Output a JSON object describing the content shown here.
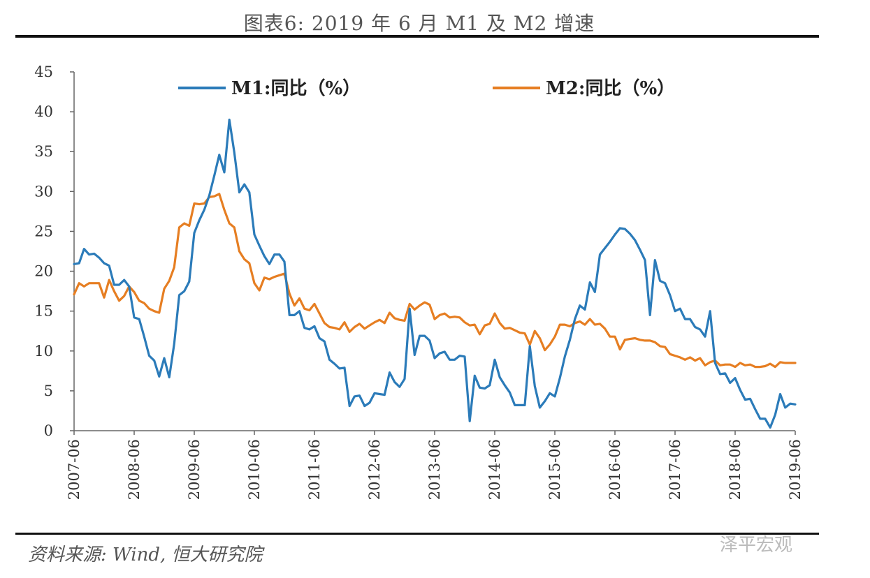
{
  "title": "图表6: 2019 年 6 月 M1 及 M2 增速",
  "source": "资料来源: Wind, 恒大研究院",
  "watermark": "泽平宏观",
  "chart_data": {
    "type": "line",
    "ylim": [
      0,
      45
    ],
    "yticks": [
      0,
      5,
      10,
      15,
      20,
      25,
      30,
      35,
      40,
      45
    ],
    "xticks": [
      "2007-06",
      "2008-06",
      "2009-06",
      "2010-06",
      "2011-06",
      "2012-06",
      "2013-06",
      "2014-06",
      "2015-06",
      "2016-06",
      "2017-06",
      "2018-06",
      "2019-06"
    ],
    "grid": false,
    "legend_position": "top",
    "series": [
      {
        "name": "M1:同比（%）",
        "color": "#2b7bb9",
        "points": [
          [
            "2007-06",
            20.9
          ],
          [
            "2007-07",
            21.0
          ],
          [
            "2007-08",
            22.8
          ],
          [
            "2007-09",
            22.1
          ],
          [
            "2007-10",
            22.2
          ],
          [
            "2007-11",
            21.7
          ],
          [
            "2007-12",
            21.0
          ],
          [
            "2008-01",
            20.7
          ],
          [
            "2008-02",
            18.3
          ],
          [
            "2008-03",
            18.3
          ],
          [
            "2008-04",
            18.9
          ],
          [
            "2008-05",
            18.1
          ],
          [
            "2008-06",
            14.2
          ],
          [
            "2008-07",
            14.0
          ],
          [
            "2008-08",
            11.8
          ],
          [
            "2008-09",
            9.4
          ],
          [
            "2008-10",
            8.8
          ],
          [
            "2008-11",
            6.8
          ],
          [
            "2008-12",
            9.1
          ],
          [
            "2009-01",
            6.7
          ],
          [
            "2009-02",
            10.9
          ],
          [
            "2009-03",
            17.0
          ],
          [
            "2009-04",
            17.5
          ],
          [
            "2009-05",
            18.7
          ],
          [
            "2009-06",
            24.8
          ],
          [
            "2009-07",
            26.4
          ],
          [
            "2009-08",
            27.7
          ],
          [
            "2009-09",
            29.5
          ],
          [
            "2009-10",
            32.0
          ],
          [
            "2009-11",
            34.6
          ],
          [
            "2009-12",
            32.4
          ],
          [
            "2010-01",
            39.0
          ],
          [
            "2010-02",
            34.9
          ],
          [
            "2010-03",
            29.9
          ],
          [
            "2010-04",
            30.9
          ],
          [
            "2010-05",
            29.9
          ],
          [
            "2010-06",
            24.6
          ],
          [
            "2010-07",
            23.2
          ],
          [
            "2010-08",
            21.9
          ],
          [
            "2010-09",
            20.9
          ],
          [
            "2010-10",
            22.1
          ],
          [
            "2010-11",
            22.1
          ],
          [
            "2010-12",
            21.2
          ],
          [
            "2011-01",
            14.5
          ],
          [
            "2011-02",
            14.5
          ],
          [
            "2011-03",
            15.0
          ],
          [
            "2011-04",
            12.9
          ],
          [
            "2011-05",
            12.7
          ],
          [
            "2011-06",
            13.1
          ],
          [
            "2011-07",
            11.6
          ],
          [
            "2011-08",
            11.2
          ],
          [
            "2011-09",
            8.9
          ],
          [
            "2011-10",
            8.4
          ],
          [
            "2011-11",
            7.8
          ],
          [
            "2011-12",
            7.9
          ],
          [
            "2012-01",
            3.1
          ],
          [
            "2012-02",
            4.3
          ],
          [
            "2012-03",
            4.4
          ],
          [
            "2012-04",
            3.1
          ],
          [
            "2012-05",
            3.5
          ],
          [
            "2012-06",
            4.7
          ],
          [
            "2012-07",
            4.6
          ],
          [
            "2012-08",
            4.5
          ],
          [
            "2012-09",
            7.3
          ],
          [
            "2012-10",
            6.1
          ],
          [
            "2012-11",
            5.5
          ],
          [
            "2012-12",
            6.5
          ],
          [
            "2013-01",
            15.3
          ],
          [
            "2013-02",
            9.5
          ],
          [
            "2013-03",
            11.9
          ],
          [
            "2013-04",
            11.9
          ],
          [
            "2013-05",
            11.3
          ],
          [
            "2013-06",
            9.1
          ],
          [
            "2013-07",
            9.7
          ],
          [
            "2013-08",
            9.9
          ],
          [
            "2013-09",
            8.9
          ],
          [
            "2013-10",
            8.9
          ],
          [
            "2013-11",
            9.4
          ],
          [
            "2013-12",
            9.3
          ],
          [
            "2014-01",
            1.2
          ],
          [
            "2014-02",
            6.9
          ],
          [
            "2014-03",
            5.4
          ],
          [
            "2014-04",
            5.3
          ],
          [
            "2014-05",
            5.7
          ],
          [
            "2014-06",
            8.9
          ],
          [
            "2014-07",
            6.7
          ],
          [
            "2014-08",
            5.7
          ],
          [
            "2014-09",
            4.8
          ],
          [
            "2014-10",
            3.2
          ],
          [
            "2014-11",
            3.2
          ],
          [
            "2014-12",
            3.2
          ],
          [
            "2015-01",
            10.6
          ],
          [
            "2015-02",
            5.6
          ],
          [
            "2015-03",
            2.9
          ],
          [
            "2015-04",
            3.7
          ],
          [
            "2015-05",
            4.7
          ],
          [
            "2015-06",
            4.3
          ],
          [
            "2015-07",
            6.6
          ],
          [
            "2015-08",
            9.3
          ],
          [
            "2015-09",
            11.4
          ],
          [
            "2015-10",
            14.0
          ],
          [
            "2015-11",
            15.7
          ],
          [
            "2015-12",
            15.2
          ],
          [
            "2016-01",
            18.6
          ],
          [
            "2016-02",
            17.4
          ],
          [
            "2016-03",
            22.1
          ],
          [
            "2016-04",
            22.9
          ],
          [
            "2016-05",
            23.7
          ],
          [
            "2016-06",
            24.6
          ],
          [
            "2016-07",
            25.4
          ],
          [
            "2016-08",
            25.3
          ],
          [
            "2016-09",
            24.7
          ],
          [
            "2016-10",
            23.9
          ],
          [
            "2016-11",
            22.7
          ],
          [
            "2016-12",
            21.4
          ],
          [
            "2017-01",
            14.5
          ],
          [
            "2017-02",
            21.4
          ],
          [
            "2017-03",
            18.8
          ],
          [
            "2017-04",
            18.5
          ],
          [
            "2017-05",
            17.0
          ],
          [
            "2017-06",
            15.0
          ],
          [
            "2017-07",
            15.3
          ],
          [
            "2017-08",
            14.0
          ],
          [
            "2017-09",
            14.0
          ],
          [
            "2017-10",
            13.0
          ],
          [
            "2017-11",
            12.7
          ],
          [
            "2017-12",
            11.8
          ],
          [
            "2018-01",
            15.0
          ],
          [
            "2018-02",
            8.5
          ],
          [
            "2018-03",
            7.1
          ],
          [
            "2018-04",
            7.2
          ],
          [
            "2018-05",
            6.0
          ],
          [
            "2018-06",
            6.6
          ],
          [
            "2018-07",
            5.1
          ],
          [
            "2018-08",
            3.9
          ],
          [
            "2018-09",
            4.0
          ],
          [
            "2018-10",
            2.7
          ],
          [
            "2018-11",
            1.5
          ],
          [
            "2018-12",
            1.5
          ],
          [
            "2019-01",
            0.4
          ],
          [
            "2019-02",
            2.0
          ],
          [
            "2019-03",
            4.6
          ],
          [
            "2019-04",
            2.9
          ],
          [
            "2019-05",
            3.4
          ],
          [
            "2019-06",
            3.3
          ]
        ]
      },
      {
        "name": "M2:同比（%）",
        "color": "#e67e22",
        "points": [
          [
            "2007-06",
            17.1
          ],
          [
            "2007-07",
            18.5
          ],
          [
            "2007-08",
            18.1
          ],
          [
            "2007-09",
            18.5
          ],
          [
            "2007-10",
            18.5
          ],
          [
            "2007-11",
            18.5
          ],
          [
            "2007-12",
            16.7
          ],
          [
            "2008-01",
            18.9
          ],
          [
            "2008-02",
            17.5
          ],
          [
            "2008-03",
            16.3
          ],
          [
            "2008-04",
            16.9
          ],
          [
            "2008-05",
            18.1
          ],
          [
            "2008-06",
            17.4
          ],
          [
            "2008-07",
            16.3
          ],
          [
            "2008-08",
            16.0
          ],
          [
            "2008-09",
            15.3
          ],
          [
            "2008-10",
            15.0
          ],
          [
            "2008-11",
            14.8
          ],
          [
            "2008-12",
            17.8
          ],
          [
            "2009-01",
            18.8
          ],
          [
            "2009-02",
            20.5
          ],
          [
            "2009-03",
            25.5
          ],
          [
            "2009-04",
            26.0
          ],
          [
            "2009-05",
            25.7
          ],
          [
            "2009-06",
            28.5
          ],
          [
            "2009-07",
            28.4
          ],
          [
            "2009-08",
            28.5
          ],
          [
            "2009-09",
            29.3
          ],
          [
            "2009-10",
            29.4
          ],
          [
            "2009-11",
            29.7
          ],
          [
            "2009-12",
            27.7
          ],
          [
            "2010-01",
            26.0
          ],
          [
            "2010-02",
            25.5
          ],
          [
            "2010-03",
            22.5
          ],
          [
            "2010-04",
            21.5
          ],
          [
            "2010-05",
            21.0
          ],
          [
            "2010-06",
            18.5
          ],
          [
            "2010-07",
            17.6
          ],
          [
            "2010-08",
            19.2
          ],
          [
            "2010-09",
            19.0
          ],
          [
            "2010-10",
            19.3
          ],
          [
            "2010-11",
            19.5
          ],
          [
            "2010-12",
            19.7
          ],
          [
            "2011-01",
            17.2
          ],
          [
            "2011-02",
            15.7
          ],
          [
            "2011-03",
            16.6
          ],
          [
            "2011-04",
            15.3
          ],
          [
            "2011-05",
            15.1
          ],
          [
            "2011-06",
            15.9
          ],
          [
            "2011-07",
            14.7
          ],
          [
            "2011-08",
            13.5
          ],
          [
            "2011-09",
            13.0
          ],
          [
            "2011-10",
            12.9
          ],
          [
            "2011-11",
            12.7
          ],
          [
            "2011-12",
            13.6
          ],
          [
            "2012-01",
            12.4
          ],
          [
            "2012-02",
            13.0
          ],
          [
            "2012-03",
            13.4
          ],
          [
            "2012-04",
            12.8
          ],
          [
            "2012-05",
            13.2
          ],
          [
            "2012-06",
            13.6
          ],
          [
            "2012-07",
            13.9
          ],
          [
            "2012-08",
            13.5
          ],
          [
            "2012-09",
            14.8
          ],
          [
            "2012-10",
            14.1
          ],
          [
            "2012-11",
            13.9
          ],
          [
            "2012-12",
            13.8
          ],
          [
            "2013-01",
            15.9
          ],
          [
            "2013-02",
            15.2
          ],
          [
            "2013-03",
            15.7
          ],
          [
            "2013-04",
            16.1
          ],
          [
            "2013-05",
            15.8
          ],
          [
            "2013-06",
            14.0
          ],
          [
            "2013-07",
            14.5
          ],
          [
            "2013-08",
            14.7
          ],
          [
            "2013-09",
            14.2
          ],
          [
            "2013-10",
            14.3
          ],
          [
            "2013-11",
            14.2
          ],
          [
            "2013-12",
            13.6
          ],
          [
            "2014-01",
            13.2
          ],
          [
            "2014-02",
            13.3
          ],
          [
            "2014-03",
            12.1
          ],
          [
            "2014-04",
            13.2
          ],
          [
            "2014-05",
            13.4
          ],
          [
            "2014-06",
            14.7
          ],
          [
            "2014-07",
            13.5
          ],
          [
            "2014-08",
            12.8
          ],
          [
            "2014-09",
            12.9
          ],
          [
            "2014-10",
            12.6
          ],
          [
            "2014-11",
            12.3
          ],
          [
            "2014-12",
            12.2
          ],
          [
            "2015-01",
            10.8
          ],
          [
            "2015-02",
            12.5
          ],
          [
            "2015-03",
            11.6
          ],
          [
            "2015-04",
            10.1
          ],
          [
            "2015-05",
            10.8
          ],
          [
            "2015-06",
            11.8
          ],
          [
            "2015-07",
            13.3
          ],
          [
            "2015-08",
            13.3
          ],
          [
            "2015-09",
            13.1
          ],
          [
            "2015-10",
            13.5
          ],
          [
            "2015-11",
            13.7
          ],
          [
            "2015-12",
            13.3
          ],
          [
            "2016-01",
            14.0
          ],
          [
            "2016-02",
            13.3
          ],
          [
            "2016-03",
            13.4
          ],
          [
            "2016-04",
            12.8
          ],
          [
            "2016-05",
            11.8
          ],
          [
            "2016-06",
            11.8
          ],
          [
            "2016-07",
            10.2
          ],
          [
            "2016-08",
            11.4
          ],
          [
            "2016-09",
            11.5
          ],
          [
            "2016-10",
            11.6
          ],
          [
            "2016-11",
            11.4
          ],
          [
            "2016-12",
            11.3
          ],
          [
            "2017-01",
            11.3
          ],
          [
            "2017-02",
            11.1
          ],
          [
            "2017-03",
            10.6
          ],
          [
            "2017-04",
            10.5
          ],
          [
            "2017-05",
            9.6
          ],
          [
            "2017-06",
            9.4
          ],
          [
            "2017-07",
            9.2
          ],
          [
            "2017-08",
            8.9
          ],
          [
            "2017-09",
            9.2
          ],
          [
            "2017-10",
            8.8
          ],
          [
            "2017-11",
            9.1
          ],
          [
            "2017-12",
            8.2
          ],
          [
            "2018-01",
            8.6
          ],
          [
            "2018-02",
            8.8
          ],
          [
            "2018-03",
            8.2
          ],
          [
            "2018-04",
            8.3
          ],
          [
            "2018-05",
            8.3
          ],
          [
            "2018-06",
            8.0
          ],
          [
            "2018-07",
            8.5
          ],
          [
            "2018-08",
            8.2
          ],
          [
            "2018-09",
            8.3
          ],
          [
            "2018-10",
            8.0
          ],
          [
            "2018-11",
            8.0
          ],
          [
            "2018-12",
            8.1
          ],
          [
            "2019-01",
            8.4
          ],
          [
            "2019-02",
            8.0
          ],
          [
            "2019-03",
            8.6
          ],
          [
            "2019-04",
            8.5
          ],
          [
            "2019-05",
            8.5
          ],
          [
            "2019-06",
            8.5
          ]
        ]
      }
    ]
  }
}
